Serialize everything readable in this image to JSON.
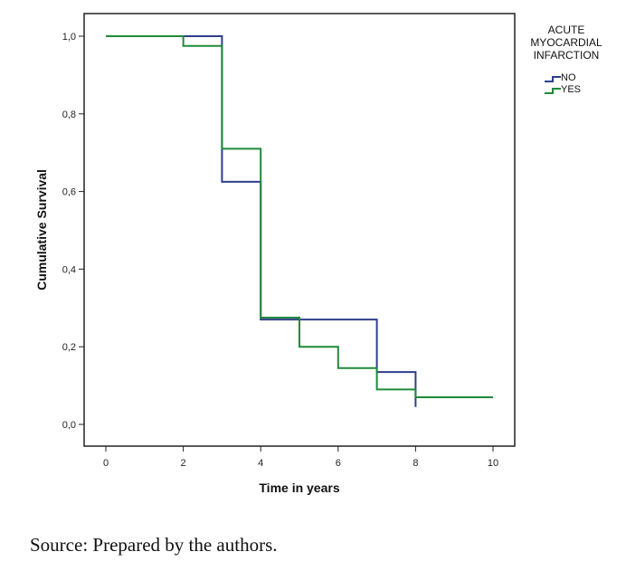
{
  "chart_data": {
    "type": "line",
    "step": true,
    "xlabel": "Time in years",
    "ylabel": "Cumulative Survival",
    "xlim": [
      0,
      10
    ],
    "ylim": [
      0,
      1
    ],
    "xticks": [
      0,
      2,
      4,
      6,
      8,
      10
    ],
    "yticks": [
      0.0,
      0.2,
      0.4,
      0.6,
      0.8,
      1.0
    ],
    "xtick_labels": [
      "0",
      "2",
      "4",
      "6",
      "8",
      "10"
    ],
    "ytick_labels": [
      "0,0",
      "0,2",
      "0,4",
      "0,6",
      "0,8",
      "1,0"
    ],
    "grid": false,
    "legend": {
      "title_lines": [
        "ACUTE",
        "MYOCARDIAL",
        "INFARCTION"
      ],
      "placement": "right"
    },
    "series": [
      {
        "name": "NO",
        "color": "#2e3f8a",
        "x": [
          0,
          3,
          4,
          7,
          8
        ],
        "y": [
          1.0,
          0.625,
          0.27,
          0.135,
          0.045
        ]
      },
      {
        "name": "YES",
        "color": "#1f8a3a",
        "x": [
          0,
          2,
          3,
          4,
          5,
          6,
          7,
          8,
          10
        ],
        "y": [
          1.0,
          0.975,
          0.71,
          0.275,
          0.2,
          0.145,
          0.09,
          0.07,
          0.07
        ]
      }
    ]
  },
  "source": "Source: Prepared by the authors."
}
